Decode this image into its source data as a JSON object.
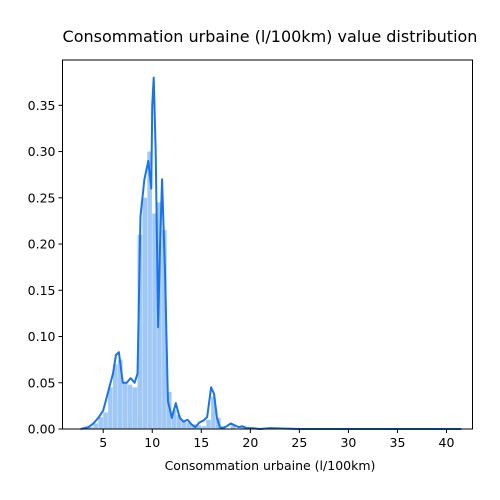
{
  "chart_data": {
    "type": "bar",
    "title": "Consommation urbaine (l/100km) value distribution",
    "xlabel": "Consommation urbaine (l/100km)",
    "ylabel": "",
    "xlim": [
      0.85,
      42.65
    ],
    "ylim": [
      0,
      0.399
    ],
    "xticks": [
      5,
      10,
      15,
      20,
      25,
      30,
      35,
      40
    ],
    "yticks": [
      0.0,
      0.05,
      0.1,
      0.15,
      0.2,
      0.25,
      0.3,
      0.35
    ],
    "ytick_labels": [
      "0.00",
      "0.05",
      "0.10",
      "0.15",
      "0.20",
      "0.25",
      "0.30",
      "0.35"
    ],
    "grid": false,
    "colors": {
      "hist_fill": "#a0c8f6",
      "kde_line": "#1a73e8"
    },
    "histogram": {
      "bin_width": 0.5,
      "bins": [
        {
          "x0": 3.5,
          "h": 0.002
        },
        {
          "x0": 4.0,
          "h": 0.006
        },
        {
          "x0": 4.5,
          "h": 0.013
        },
        {
          "x0": 5.0,
          "h": 0.018
        },
        {
          "x0": 5.5,
          "h": 0.045
        },
        {
          "x0": 6.0,
          "h": 0.07
        },
        {
          "x0": 6.5,
          "h": 0.075
        },
        {
          "x0": 7.0,
          "h": 0.05
        },
        {
          "x0": 7.5,
          "h": 0.048
        },
        {
          "x0": 8.0,
          "h": 0.045
        },
        {
          "x0": 8.5,
          "h": 0.21
        },
        {
          "x0": 9.0,
          "h": 0.25
        },
        {
          "x0": 9.5,
          "h": 0.3
        },
        {
          "x0": 10.0,
          "h": 0.233
        },
        {
          "x0": 10.5,
          "h": 0.245
        },
        {
          "x0": 11.0,
          "h": 0.215
        },
        {
          "x0": 11.5,
          "h": 0.04
        },
        {
          "x0": 12.0,
          "h": 0.02
        },
        {
          "x0": 12.5,
          "h": 0.015
        },
        {
          "x0": 13.0,
          "h": 0.008
        },
        {
          "x0": 13.5,
          "h": 0.007
        },
        {
          "x0": 14.0,
          "h": 0.005
        },
        {
          "x0": 14.5,
          "h": 0.004
        },
        {
          "x0": 15.0,
          "h": 0.003
        },
        {
          "x0": 15.5,
          "h": 0.01
        },
        {
          "x0": 16.0,
          "h": 0.035
        },
        {
          "x0": 16.5,
          "h": 0.012
        },
        {
          "x0": 17.0,
          "h": 0.003
        },
        {
          "x0": 18.0,
          "h": 0.004
        },
        {
          "x0": 19.0,
          "h": 0.002
        },
        {
          "x0": 20.0,
          "h": 0.002
        },
        {
          "x0": 21.0,
          "h": 0.001
        },
        {
          "x0": 23.0,
          "h": 0.001
        }
      ]
    },
    "kde": {
      "x": [
        2.7,
        3.5,
        4.0,
        4.5,
        5.0,
        5.5,
        6.0,
        6.3,
        6.6,
        7.0,
        7.4,
        7.8,
        8.2,
        8.5,
        8.8,
        9.2,
        9.6,
        9.9,
        10.0,
        10.15,
        10.35,
        10.5,
        10.6,
        10.8,
        11.0,
        11.3,
        11.6,
        12.0,
        12.4,
        12.8,
        13.2,
        13.6,
        14.0,
        14.4,
        14.8,
        15.2,
        15.6,
        16.0,
        16.3,
        16.6,
        16.9,
        17.2,
        17.6,
        18.0,
        18.4,
        18.8,
        19.2,
        19.6,
        20.0,
        21.0,
        22.0,
        25.0,
        30.0,
        35.0,
        41.5
      ],
      "y": [
        0.0,
        0.002,
        0.006,
        0.012,
        0.02,
        0.04,
        0.06,
        0.08,
        0.083,
        0.05,
        0.05,
        0.055,
        0.05,
        0.06,
        0.23,
        0.27,
        0.29,
        0.26,
        0.35,
        0.38,
        0.3,
        0.19,
        0.11,
        0.2,
        0.27,
        0.17,
        0.03,
        0.012,
        0.028,
        0.012,
        0.008,
        0.01,
        0.005,
        0.002,
        0.007,
        0.009,
        0.013,
        0.045,
        0.038,
        0.012,
        0.002,
        0.001,
        0.003,
        0.006,
        0.004,
        0.002,
        0.003,
        0.001,
        0.001,
        0.0,
        0.001,
        0.0,
        0.0,
        0.0,
        0.0
      ]
    }
  }
}
